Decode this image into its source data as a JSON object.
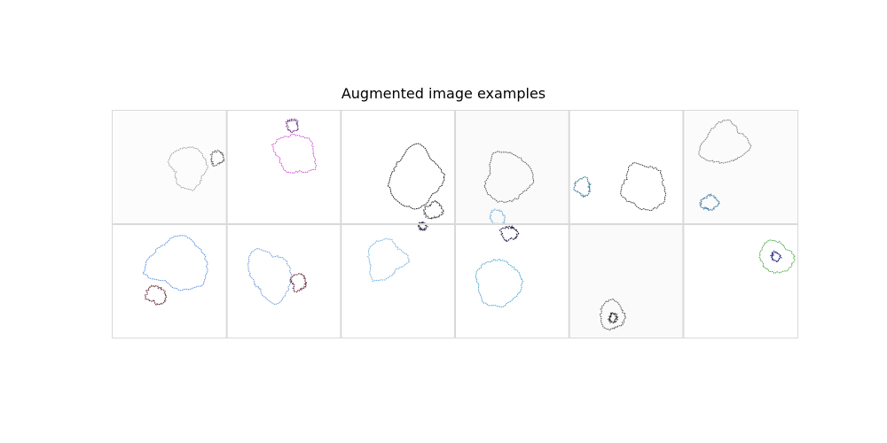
{
  "figure": {
    "title": "Augmented image examples"
  },
  "grid": {
    "rows": 2,
    "cols": 6,
    "border_color": "#d9d9d9",
    "tiles": [
      {
        "row": 0,
        "col": 0,
        "bg": "#fcfcfc",
        "shapes": [
          {
            "color": "#9e9e9e"
          },
          {
            "color": "#555555"
          }
        ]
      },
      {
        "row": 0,
        "col": 1,
        "bg": "#ffffff",
        "shapes": [
          {
            "color": "#d24bd6"
          },
          {
            "color": "#6a2a8a"
          }
        ]
      },
      {
        "row": 0,
        "col": 2,
        "bg": "#ffffff",
        "shapes": [
          {
            "color": "#1a1a1a"
          },
          {
            "color": "#2a2a2a"
          }
        ]
      },
      {
        "row": 0,
        "col": 3,
        "bg": "#fafafa",
        "shapes": [
          {
            "color": "#555555"
          },
          {
            "color": "#7fb6d9"
          }
        ]
      },
      {
        "row": 0,
        "col": 4,
        "bg": "#ffffff",
        "shapes": [
          {
            "color": "#3a3a3a"
          },
          {
            "color": "#2a6f8f"
          }
        ]
      },
      {
        "row": 0,
        "col": 5,
        "bg": "#fbfbfb",
        "shapes": [
          {
            "color": "#777777"
          },
          {
            "color": "#2b6a9a"
          }
        ]
      },
      {
        "row": 1,
        "col": 0,
        "bg": "#ffffff",
        "shapes": [
          {
            "color": "#5a8fe0"
          },
          {
            "color": "#5a1a2a"
          }
        ]
      },
      {
        "row": 1,
        "col": 1,
        "bg": "#ffffff",
        "shapes": [
          {
            "color": "#6d9be0"
          },
          {
            "color": "#5a1a2a"
          }
        ]
      },
      {
        "row": 1,
        "col": 2,
        "bg": "#ffffff",
        "shapes": [
          {
            "color": "#6fb0e0"
          },
          {
            "color": "#222244"
          }
        ]
      },
      {
        "row": 1,
        "col": 3,
        "bg": "#ffffff",
        "shapes": [
          {
            "color": "#3fa6d0"
          },
          {
            "color": "#000033"
          }
        ]
      },
      {
        "row": 1,
        "col": 4,
        "bg": "#fafafa",
        "shapes": [
          {
            "color": "#555555"
          },
          {
            "color": "#222222"
          }
        ]
      },
      {
        "row": 1,
        "col": 5,
        "bg": "#ffffff",
        "shapes": [
          {
            "color": "#46a846"
          },
          {
            "color": "#2a2a8a"
          }
        ]
      }
    ]
  }
}
